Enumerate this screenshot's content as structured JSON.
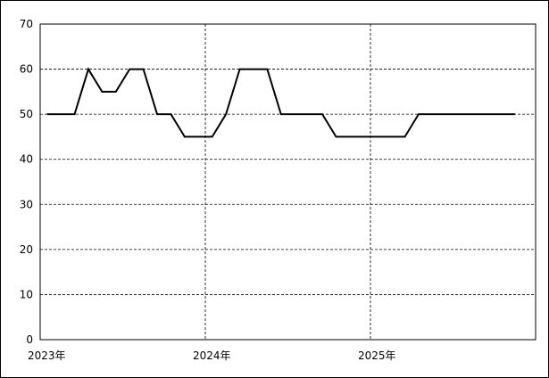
{
  "chart_data": {
    "type": "line",
    "x": [
      0.5,
      1.5,
      2.5,
      3.5,
      4.5,
      5.5,
      6.5,
      7.5,
      8.5,
      9.5,
      10.5,
      11.5,
      12.5,
      13.5,
      14.5,
      15.5,
      16.5,
      17.5,
      18.5,
      19.5,
      20.5,
      21.5,
      22.5,
      23.5,
      24.5,
      25.5,
      26.5,
      27.5,
      28.5,
      29.5,
      30.5,
      31.5,
      32.5,
      33.5,
      34.5
    ],
    "values": [
      50,
      50,
      50,
      60,
      55,
      55,
      60,
      60,
      50,
      50,
      45,
      45,
      45,
      50,
      60,
      60,
      60,
      50,
      50,
      50,
      50,
      45,
      45,
      45,
      45,
      45,
      45,
      50,
      50,
      50,
      50,
      50,
      50,
      50,
      50
    ],
    "color": "#000000",
    "xlim": [
      0,
      36
    ],
    "xticks": [
      {
        "value": 0,
        "label": "2023年"
      },
      {
        "value": 12,
        "label": "2024年"
      },
      {
        "value": 24,
        "label": "2025年"
      }
    ],
    "ylim": [
      0,
      70
    ],
    "yticks": [
      0,
      10,
      20,
      30,
      40,
      50,
      60,
      70
    ],
    "grid": true
  }
}
